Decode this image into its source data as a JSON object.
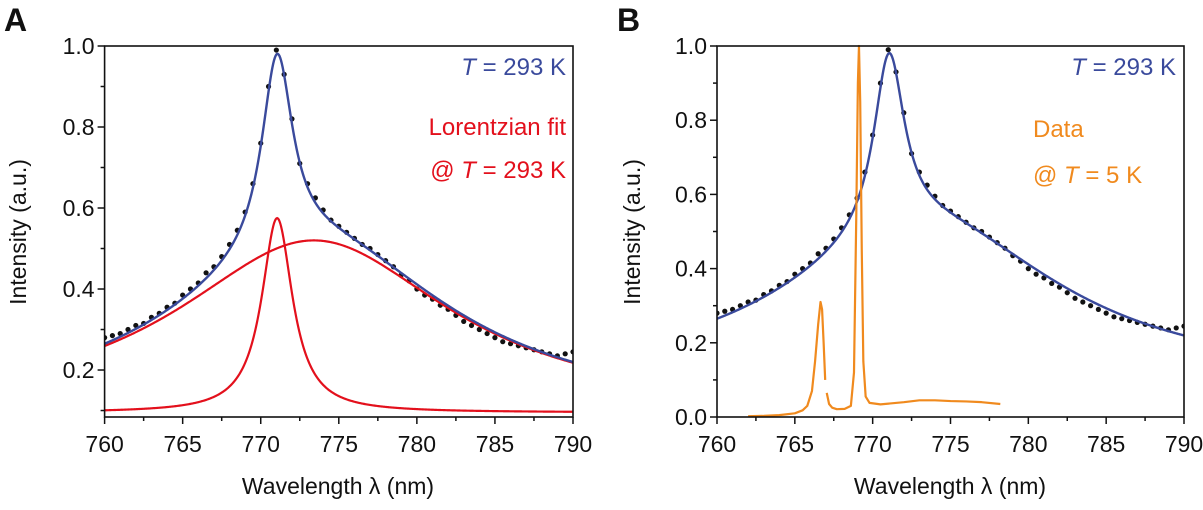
{
  "chart_data": [
    {
      "panel_label": "A",
      "type": "scatter+line",
      "xlabel": "Wavelength λ (nm)",
      "ylabel": "Intensity (a.u.)",
      "xlim": [
        760,
        790
      ],
      "ylim": [
        0.084,
        1.0
      ],
      "xticks": [
        760,
        765,
        770,
        775,
        780,
        785,
        790
      ],
      "yticks": [
        0.2,
        0.4,
        0.6,
        0.8,
        1.0
      ],
      "ytick_labels": [
        "0.2",
        "0.4",
        "0.6",
        "0.8",
        "1.0"
      ],
      "grid": false,
      "annotations": [
        {
          "parts": [
            {
              "text": "T",
              "italic": true
            },
            {
              "text": " = 293 K",
              "italic": false
            }
          ],
          "color": "#3a4a9c"
        },
        {
          "parts": [
            {
              "text": "Lorentzian fit",
              "italic": false
            }
          ],
          "color": "#e3101c"
        },
        {
          "parts": [
            {
              "text": "@  ",
              "italic": false
            },
            {
              "text": "T",
              "italic": true
            },
            {
              "text": " = 293 K",
              "italic": false
            }
          ],
          "color": "#e3101c"
        }
      ],
      "scatter": {
        "color": "#111111",
        "x": [
          760,
          760.5,
          761,
          761.5,
          762,
          762.5,
          763,
          763.5,
          764,
          764.5,
          765,
          765.5,
          766,
          766.5,
          767,
          767.5,
          768,
          768.5,
          769,
          769.5,
          770,
          770.5,
          771,
          771.5,
          772,
          772.5,
          773,
          773.5,
          774,
          774.5,
          775,
          775.5,
          776,
          776.5,
          777,
          777.5,
          778,
          778.5,
          779,
          779.5,
          780,
          780.5,
          781,
          781.5,
          782,
          782.5,
          783,
          783.5,
          784,
          784.5,
          785,
          785.5,
          786,
          786.5,
          787,
          787.5,
          788,
          788.5,
          789,
          789.5,
          790
        ],
        "y": [
          0.28,
          0.285,
          0.29,
          0.3,
          0.31,
          0.315,
          0.33,
          0.34,
          0.355,
          0.365,
          0.385,
          0.4,
          0.415,
          0.44,
          0.455,
          0.48,
          0.51,
          0.545,
          0.59,
          0.66,
          0.76,
          0.9,
          0.99,
          0.93,
          0.82,
          0.71,
          0.66,
          0.625,
          0.595,
          0.57,
          0.555,
          0.54,
          0.525,
          0.51,
          0.5,
          0.485,
          0.47,
          0.455,
          0.435,
          0.42,
          0.4,
          0.385,
          0.375,
          0.36,
          0.35,
          0.335,
          0.32,
          0.31,
          0.3,
          0.29,
          0.28,
          0.27,
          0.265,
          0.26,
          0.255,
          0.25,
          0.245,
          0.24,
          0.235,
          0.24,
          0.245
        ]
      },
      "lorentzian_fit": {
        "color": "#3a4a9c",
        "baseline": 0.09,
        "components": [
          {
            "center": 771.05,
            "hwhm": 1.2,
            "amplitude": 0.48,
            "baseline": 0.095,
            "color": "#e3101c"
          },
          {
            "center": 773.4,
            "hwhm": 10.8,
            "amplitude": 0.43,
            "baseline": 0.09,
            "color": "#e3101c"
          }
        ]
      }
    },
    {
      "panel_label": "B",
      "type": "scatter+line",
      "xlabel": "Wavelength λ (nm)",
      "ylabel": "Intensity (a.u.)",
      "xlim": [
        760,
        790
      ],
      "ylim": [
        0.0,
        1.0
      ],
      "xticks": [
        760,
        765,
        770,
        775,
        780,
        785,
        790
      ],
      "yticks": [
        0.0,
        0.2,
        0.4,
        0.6,
        0.8,
        1.0
      ],
      "ytick_labels": [
        "0.0",
        "0.2",
        "0.4",
        "0.6",
        "0.8",
        "1.0"
      ],
      "grid": false,
      "annotations": [
        {
          "parts": [
            {
              "text": "T",
              "italic": true
            },
            {
              "text": " = 293 K",
              "italic": false
            }
          ],
          "color": "#3a4a9c"
        },
        {
          "parts": [
            {
              "text": "Data",
              "italic": false
            }
          ],
          "color": "#f08a1e"
        },
        {
          "parts": [
            {
              "text": "@  ",
              "italic": false
            },
            {
              "text": "T",
              "italic": true
            },
            {
              "text": " = 5 K",
              "italic": false
            }
          ],
          "color": "#f08a1e"
        }
      ],
      "scatter": {
        "color": "#111111",
        "x": [
          760,
          760.5,
          761,
          761.5,
          762,
          762.5,
          763,
          763.5,
          764,
          764.5,
          765,
          765.5,
          766,
          766.5,
          767,
          767.5,
          768,
          768.5,
          769,
          769.5,
          770,
          770.5,
          771,
          771.5,
          772,
          772.5,
          773,
          773.5,
          774,
          774.5,
          775,
          775.5,
          776,
          776.5,
          777,
          777.5,
          778,
          778.5,
          779,
          779.5,
          780,
          780.5,
          781,
          781.5,
          782,
          782.5,
          783,
          783.5,
          784,
          784.5,
          785,
          785.5,
          786,
          786.5,
          787,
          787.5,
          788,
          788.5,
          789,
          789.5,
          790
        ],
        "y": [
          0.28,
          0.285,
          0.29,
          0.3,
          0.31,
          0.315,
          0.33,
          0.34,
          0.355,
          0.365,
          0.385,
          0.4,
          0.415,
          0.44,
          0.455,
          0.48,
          0.51,
          0.545,
          0.59,
          0.66,
          0.76,
          0.9,
          0.99,
          0.93,
          0.82,
          0.71,
          0.66,
          0.625,
          0.595,
          0.57,
          0.555,
          0.54,
          0.525,
          0.51,
          0.5,
          0.485,
          0.47,
          0.455,
          0.435,
          0.42,
          0.4,
          0.385,
          0.375,
          0.36,
          0.35,
          0.335,
          0.32,
          0.31,
          0.3,
          0.29,
          0.28,
          0.27,
          0.265,
          0.26,
          0.255,
          0.25,
          0.245,
          0.24,
          0.235,
          0.24,
          0.245
        ]
      },
      "lorentzian_fit": {
        "color": "#3a4a9c",
        "baseline": 0.09,
        "components": [
          {
            "center": 771.05,
            "hwhm": 1.2,
            "amplitude": 0.48
          },
          {
            "center": 773.4,
            "hwhm": 10.8,
            "amplitude": 0.43
          }
        ]
      },
      "low_temp_data": {
        "color": "#f08a1e",
        "segments": [
          {
            "x": [
              762.0,
              763,
              764,
              765,
              765.5,
              765.8,
              766.1,
              766.3,
              766.5,
              766.65,
              766.75,
              766.85,
              766.95
            ],
            "y": [
              0.002,
              0.003,
              0.005,
              0.01,
              0.018,
              0.03,
              0.07,
              0.15,
              0.25,
              0.31,
              0.29,
              0.2,
              0.1
            ]
          },
          {
            "x": [
              767.05,
              767.2,
              767.4,
              767.7,
              768.2,
              768.6,
              768.8,
              768.95,
              769.05,
              769.12,
              769.2,
              769.3,
              769.4,
              769.55,
              769.8,
              770.5,
              772,
              773,
              774,
              775,
              776,
              777,
              778.2
            ],
            "y": [
              0.065,
              0.035,
              0.025,
              0.021,
              0.022,
              0.03,
              0.12,
              0.55,
              0.9,
              1.0,
              0.85,
              0.45,
              0.15,
              0.055,
              0.038,
              0.034,
              0.04,
              0.045,
              0.045,
              0.043,
              0.042,
              0.04,
              0.035
            ]
          }
        ]
      }
    }
  ]
}
